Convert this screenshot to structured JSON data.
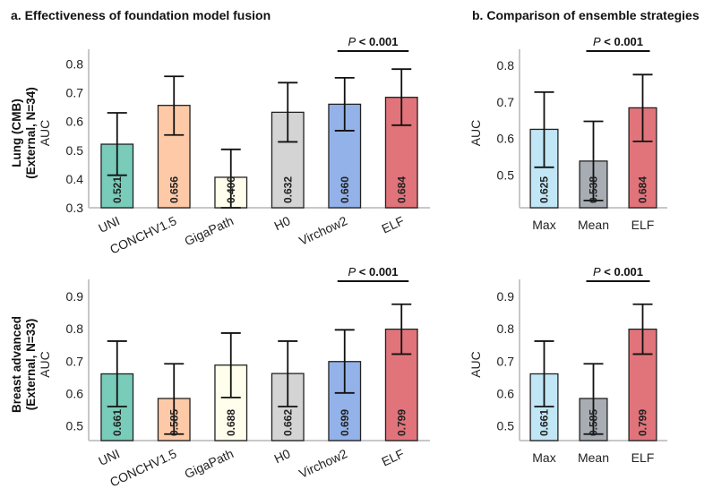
{
  "panel_titles": {
    "a": "a. Effectiveness of foundation model fusion",
    "b": "b. Comparison of ensemble strategies"
  },
  "colors": {
    "UNI": "#79cbba",
    "CONCHV1.5": "#fdc9a7",
    "GigaPath": "#fffdeb",
    "H0": "#d4d4d4",
    "Virchow2": "#93b2e9",
    "ELF": "#e0747a",
    "Max": "#c1e6f5",
    "Mean": "#a7adb2"
  },
  "chart_data": [
    {
      "id": "a-lung",
      "type": "bar",
      "row_label": [
        "Lung (CMB)",
        "(External, N=34)"
      ],
      "ylabel": "AUC",
      "ylim": [
        0.3,
        0.82
      ],
      "yticks": [
        "0.3",
        "0.4",
        "0.5",
        "0.6",
        "0.7",
        "0.8"
      ],
      "categories": [
        "UNI",
        "CONCHV1.5",
        "GigaPath",
        "H0",
        "Virchow2",
        "ELF"
      ],
      "values": [
        0.521,
        0.656,
        0.406,
        0.632,
        0.66,
        0.684
      ],
      "labels": [
        "0.521",
        "0.656",
        "0.406",
        "0.632",
        "0.660",
        "0.684"
      ],
      "err_low": [
        0.413,
        0.553,
        0.3,
        0.529,
        0.568,
        0.587
      ],
      "err_high": [
        0.63,
        0.757,
        0.503,
        0.735,
        0.752,
        0.782
      ],
      "significance": {
        "p_label": "P",
        "p_text": " < 0.001",
        "from": "Virchow2",
        "to": "ELF"
      }
    },
    {
      "id": "b-lung",
      "type": "bar",
      "ylabel": "AUC",
      "ylim": [
        0.41,
        0.82
      ],
      "yticks": [
        "0.5",
        "0.6",
        "0.7",
        "0.8"
      ],
      "categories": [
        "Max",
        "Mean",
        "ELF"
      ],
      "values": [
        0.625,
        0.538,
        0.684
      ],
      "labels": [
        "0.625",
        "0.538",
        "0.684"
      ],
      "err_low": [
        0.521,
        0.43,
        0.592
      ],
      "err_high": [
        0.727,
        0.647,
        0.775
      ],
      "significance": {
        "p_label": "P",
        "p_text": " < 0.001",
        "from": "Mean",
        "to": "ELF"
      }
    },
    {
      "id": "a-breast",
      "type": "bar",
      "row_label": [
        "Breast advanced",
        "(External, N=33)"
      ],
      "ylabel": "AUC",
      "ylim": [
        0.455,
        0.925
      ],
      "yticks": [
        "0.5",
        "0.6",
        "0.7",
        "0.8",
        "0.9"
      ],
      "categories": [
        "UNI",
        "CONCHV1.5",
        "GigaPath",
        "H0",
        "Virchow2",
        "ELF"
      ],
      "values": [
        0.661,
        0.585,
        0.688,
        0.662,
        0.699,
        0.799
      ],
      "labels": [
        "0.661",
        "0.585",
        "0.688",
        "0.662",
        "0.699",
        "0.799"
      ],
      "err_low": [
        0.56,
        0.475,
        0.588,
        0.56,
        0.602,
        0.722
      ],
      "err_high": [
        0.762,
        0.692,
        0.787,
        0.762,
        0.797,
        0.876
      ],
      "significance": {
        "p_label": "P",
        "p_text": " < 0.001",
        "from": "Virchow2",
        "to": "ELF"
      }
    },
    {
      "id": "b-breast",
      "type": "bar",
      "ylabel": "AUC",
      "ylim": [
        0.455,
        0.925
      ],
      "yticks": [
        "0.5",
        "0.6",
        "0.7",
        "0.8",
        "0.9"
      ],
      "categories": [
        "Max",
        "Mean",
        "ELF"
      ],
      "values": [
        0.661,
        0.585,
        0.799
      ],
      "labels": [
        "0.661",
        "0.585",
        "0.799"
      ],
      "err_low": [
        0.56,
        0.475,
        0.722
      ],
      "err_high": [
        0.762,
        0.692,
        0.876
      ],
      "significance": {
        "p_label": "P",
        "p_text": " < 0.001",
        "from": "Mean",
        "to": "ELF"
      }
    }
  ]
}
